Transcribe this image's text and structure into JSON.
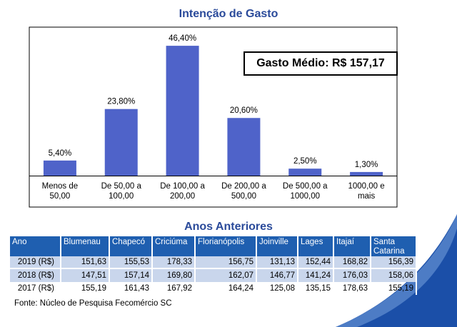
{
  "chart_data": {
    "type": "bar",
    "title": "Intenção de Gasto",
    "categories": [
      "Menos de 50,00",
      "De 50,00 a 100,00",
      "De 100,00 a 200,00",
      "De 200,00 a 500,00",
      "De 500,00 a 1000,00",
      "1000,00 e mais"
    ],
    "category_lines": [
      [
        "Menos de",
        "50,00"
      ],
      [
        "De 50,00 a",
        "100,00"
      ],
      [
        "De 100,00 a",
        "200,00"
      ],
      [
        "De 200,00 a",
        "500,00"
      ],
      [
        "De 500,00 a",
        "1000,00"
      ],
      [
        "1000,00 e",
        "mais"
      ]
    ],
    "values": [
      5.4,
      23.8,
      46.4,
      20.6,
      2.5,
      1.3
    ],
    "value_labels": [
      "5,40%",
      "23,80%",
      "46,40%",
      "20,60%",
      "2,50%",
      "1,30%"
    ],
    "ylim": [
      0,
      50
    ],
    "bar_color": "#4f63c9",
    "grid": false,
    "annotation": "Gasto Médio: R$ 157,17"
  },
  "table": {
    "title": "Anos Anteriores",
    "header_color": "#1f5fb0",
    "row_color": "#c9d6ec",
    "columns": [
      "Ano",
      "Blumenau",
      "Chapecó",
      "Criciúma",
      "Florianópolis",
      "Joinville",
      "Lages",
      "Itajaí",
      "Santa Catarina"
    ],
    "rows": [
      [
        "2019 (R$)",
        "151,63",
        "155,53",
        "178,33",
        "156,75",
        "131,13",
        "152,44",
        "168,82",
        "156,39"
      ],
      [
        "2018 (R$)",
        "147,51",
        "157,14",
        "169,80",
        "162,07",
        "146,77",
        "141,24",
        "176,03",
        "158,06"
      ],
      [
        "2017 (R$)",
        "155,19",
        "161,43",
        "167,92",
        "164,24",
        "125,08",
        "135,15",
        "178,63",
        "155,19"
      ]
    ]
  },
  "source": "Fonte: Núcleo de Pesquisa Fecomércio SC"
}
